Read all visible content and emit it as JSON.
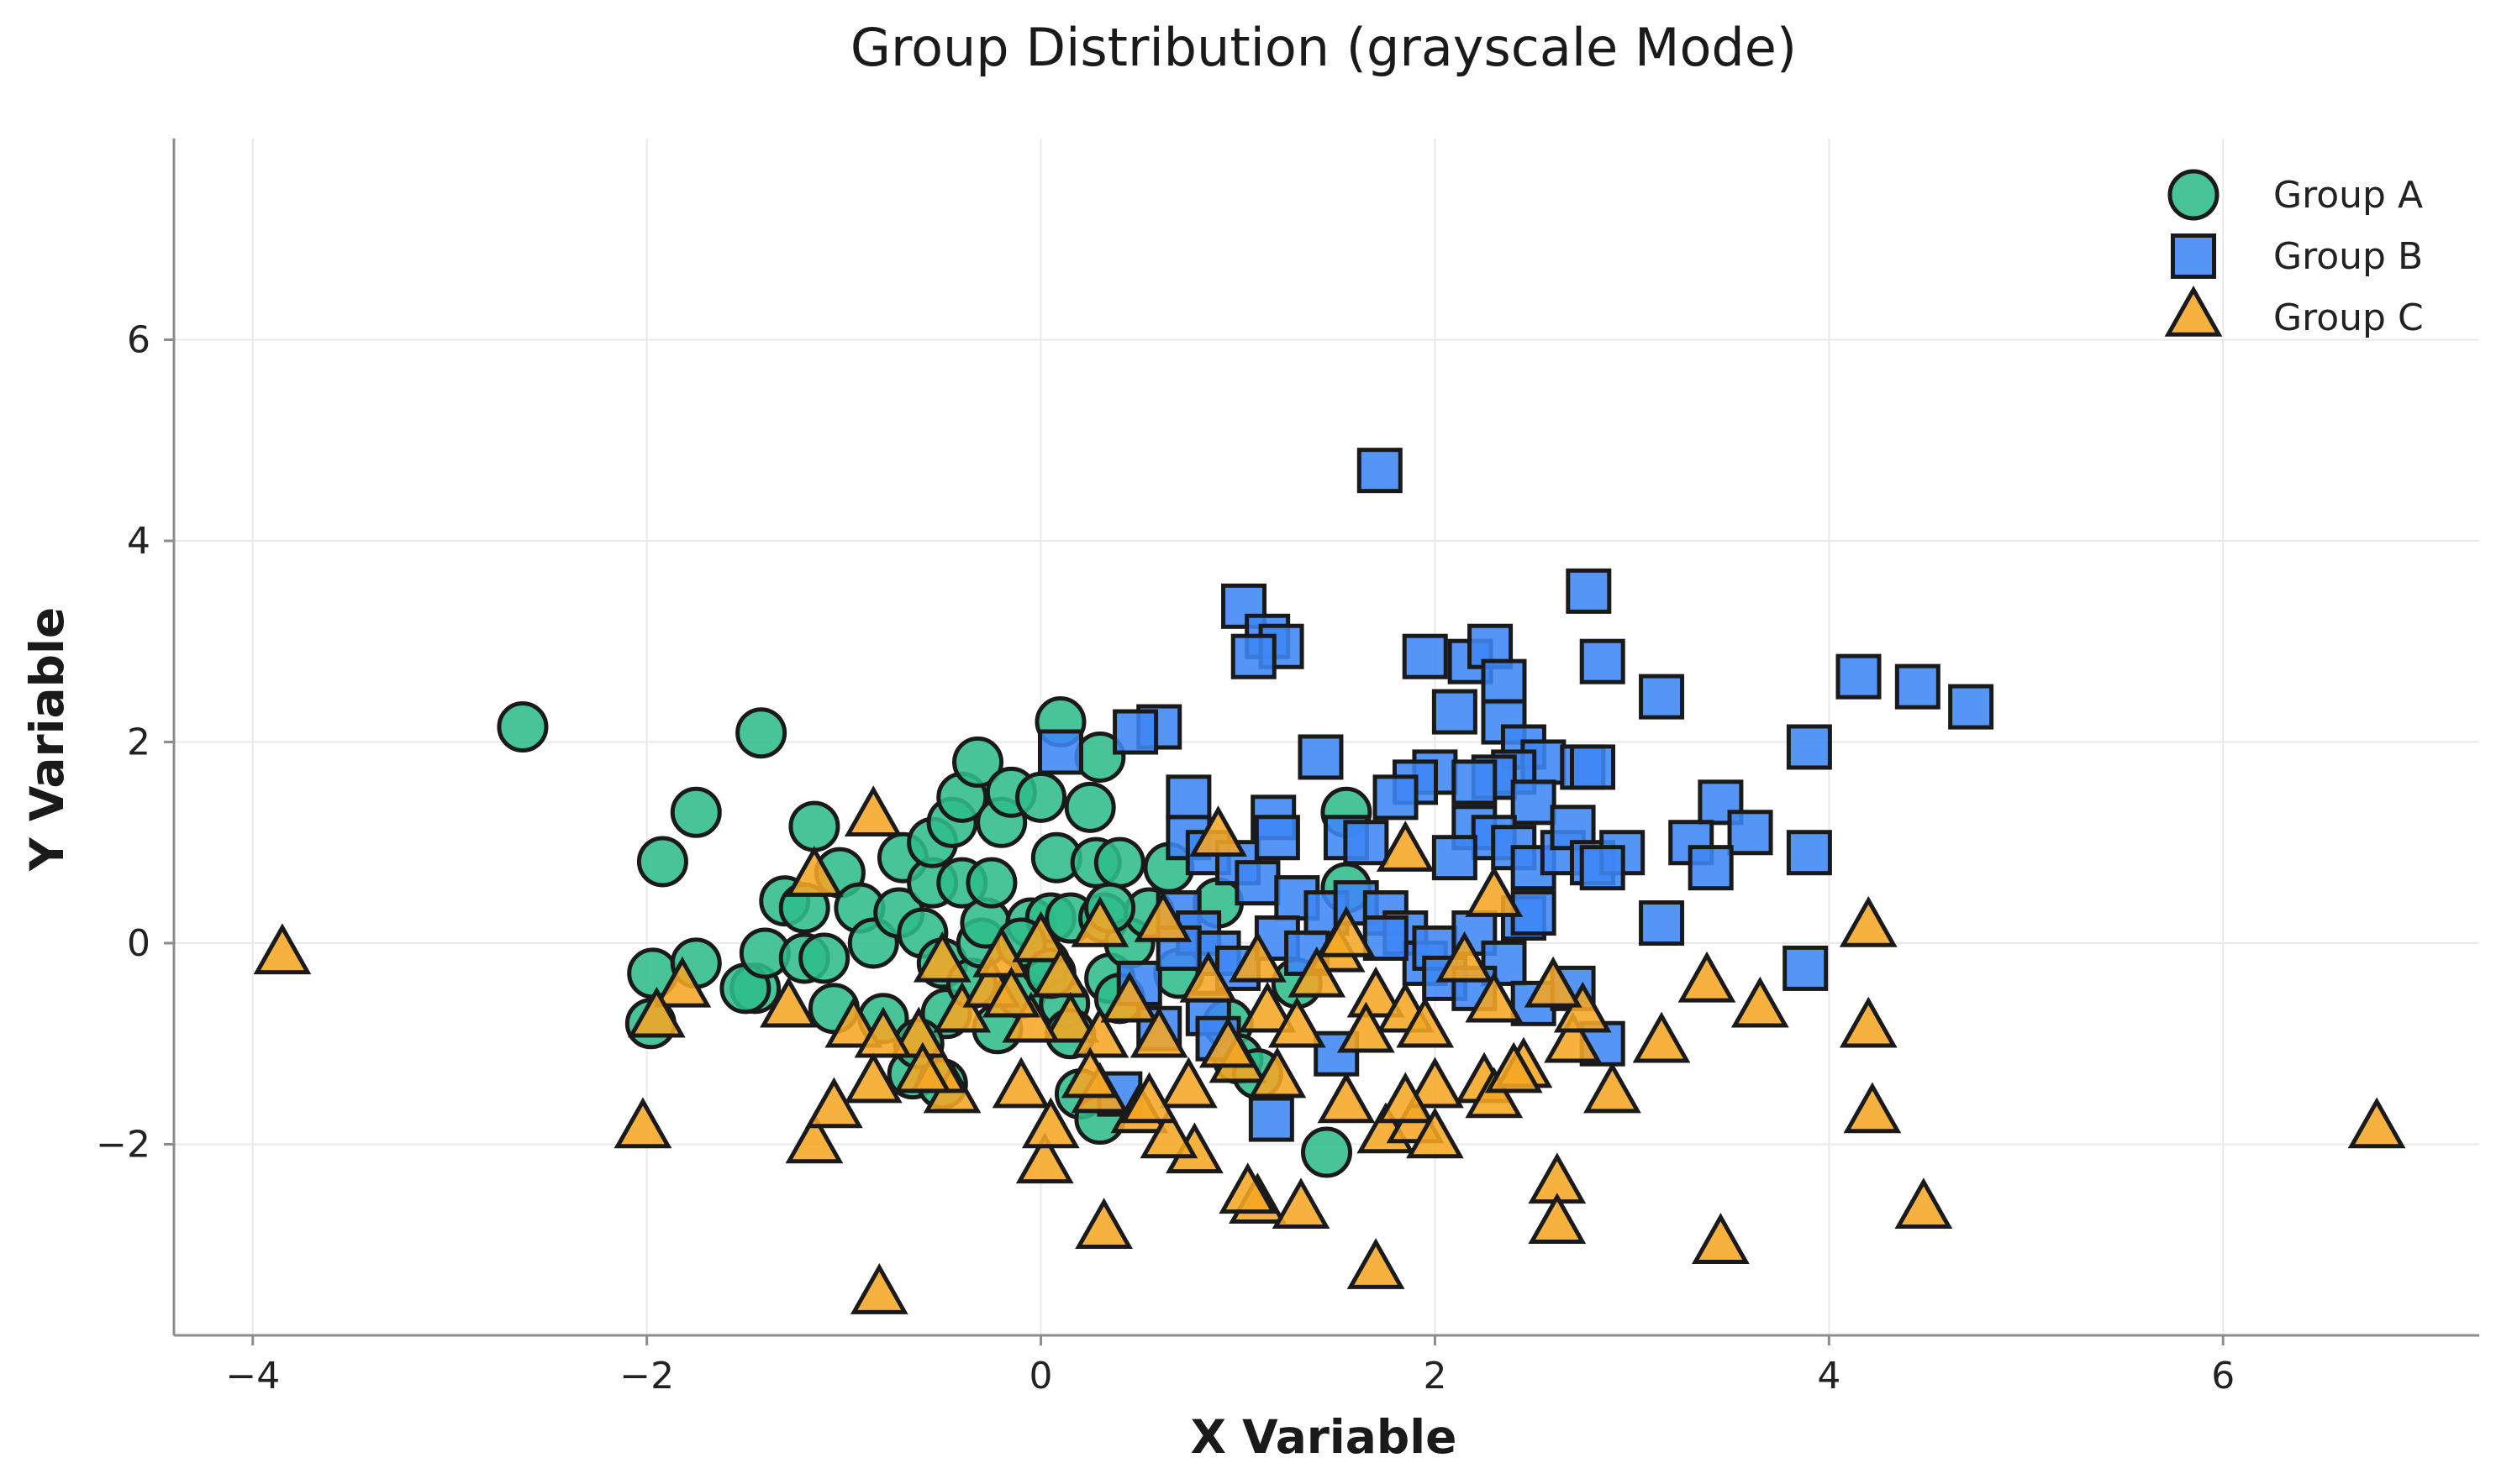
{
  "chart_data": {
    "type": "scatter",
    "title": "Group Distribution (grayscale Mode)",
    "xlabel": "X Variable",
    "ylabel": "Y Variable",
    "xlim": [
      -4.4,
      7.3
    ],
    "ylim": [
      -3.9,
      8.0
    ],
    "xticks": [
      -4,
      -2,
      0,
      2,
      4,
      6
    ],
    "yticks": [
      -2,
      0,
      2,
      4,
      6
    ],
    "xtick_labels": [
      "−4",
      "−2",
      "0",
      "2",
      "4",
      "6"
    ],
    "ytick_labels": [
      "−2",
      "0",
      "2",
      "4",
      "6"
    ],
    "grid": true,
    "legend_position": "top-right",
    "series": [
      {
        "name": "Group A",
        "marker": "circle",
        "color": "#2ebd8a",
        "points": [
          [
            -2.63,
            2.15
          ],
          [
            -1.42,
            2.09
          ],
          [
            -1.75,
            1.3
          ],
          [
            -1.92,
            0.81
          ],
          [
            -1.15,
            1.16
          ],
          [
            -1.97,
            -0.3
          ],
          [
            -1.75,
            -0.2
          ],
          [
            -1.98,
            -0.8
          ],
          [
            -1.45,
            -0.45
          ],
          [
            -1.5,
            -0.45
          ],
          [
            -1.4,
            -0.1
          ],
          [
            -1.3,
            0.42
          ],
          [
            -1.2,
            0.35
          ],
          [
            -1.2,
            -0.15
          ],
          [
            -1.1,
            -0.15
          ],
          [
            -1.05,
            -0.65
          ],
          [
            -1.02,
            0.7
          ],
          [
            -0.92,
            0.35
          ],
          [
            -0.85,
            0.0
          ],
          [
            -0.8,
            -0.75
          ],
          [
            -0.72,
            0.3
          ],
          [
            -0.7,
            0.85
          ],
          [
            -0.65,
            -1.3
          ],
          [
            -0.6,
            0.1
          ],
          [
            -0.55,
            0.6
          ],
          [
            -0.55,
            1.0
          ],
          [
            -0.5,
            -0.2
          ],
          [
            -0.48,
            -0.7
          ],
          [
            -0.45,
            1.2
          ],
          [
            -0.4,
            0.6
          ],
          [
            -0.4,
            1.45
          ],
          [
            -0.35,
            -0.4
          ],
          [
            -0.32,
            1.8
          ],
          [
            -0.3,
            0.0
          ],
          [
            -0.28,
            0.2
          ],
          [
            -0.25,
            0.6
          ],
          [
            -0.22,
            -0.85
          ],
          [
            -0.2,
            1.2
          ],
          [
            -0.15,
            1.5
          ],
          [
            -0.1,
            -0.5
          ],
          [
            -0.05,
            0.2
          ],
          [
            0.0,
            1.45
          ],
          [
            0.02,
            -0.2
          ],
          [
            0.05,
            0.25
          ],
          [
            0.08,
            0.85
          ],
          [
            0.1,
            2.2
          ],
          [
            0.12,
            -0.6
          ],
          [
            0.15,
            0.25
          ],
          [
            0.2,
            -1.5
          ],
          [
            0.25,
            1.35
          ],
          [
            0.28,
            0.8
          ],
          [
            0.3,
            1.85
          ],
          [
            0.32,
            0.25
          ],
          [
            0.35,
            -0.35
          ],
          [
            0.4,
            0.8
          ],
          [
            0.4,
            -0.55
          ],
          [
            0.45,
            0.0
          ],
          [
            -0.5,
            -1.4
          ],
          [
            0.3,
            -1.75
          ],
          [
            0.65,
            0.75
          ],
          [
            0.7,
            -0.3
          ],
          [
            0.9,
            0.4
          ],
          [
            0.95,
            -0.8
          ],
          [
            1.0,
            -1.15
          ],
          [
            1.1,
            -1.3
          ],
          [
            1.3,
            -0.4
          ],
          [
            1.55,
            1.3
          ],
          [
            1.55,
            0.55
          ],
          [
            1.45,
            -2.08
          ],
          [
            0.55,
            0.3
          ],
          [
            -0.1,
            0.0
          ],
          [
            0.15,
            -0.9
          ],
          [
            0.35,
            0.35
          ],
          [
            -0.62,
            -1.0
          ],
          [
            0.05,
            -0.3
          ]
        ]
      },
      {
        "name": "Group B",
        "marker": "square",
        "color": "#3d86f5",
        "points": [
          [
            1.72,
            4.7
          ],
          [
            2.78,
            3.5
          ],
          [
            1.03,
            3.35
          ],
          [
            1.15,
            3.05
          ],
          [
            1.22,
            2.95
          ],
          [
            1.08,
            2.85
          ],
          [
            1.95,
            2.85
          ],
          [
            2.18,
            2.8
          ],
          [
            2.28,
            2.95
          ],
          [
            2.35,
            2.6
          ],
          [
            2.85,
            2.8
          ],
          [
            3.15,
            2.45
          ],
          [
            4.15,
            2.65
          ],
          [
            4.45,
            2.55
          ],
          [
            4.72,
            2.35
          ],
          [
            0.6,
            2.15
          ],
          [
            0.48,
            2.1
          ],
          [
            0.1,
            1.9
          ],
          [
            2.1,
            2.3
          ],
          [
            2.35,
            2.2
          ],
          [
            1.42,
            1.85
          ],
          [
            2.45,
            1.95
          ],
          [
            2.55,
            1.8
          ],
          [
            2.75,
            1.75
          ],
          [
            2.8,
            1.75
          ],
          [
            2.0,
            1.7
          ],
          [
            2.4,
            1.7
          ],
          [
            2.3,
            1.65
          ],
          [
            2.2,
            1.6
          ],
          [
            1.9,
            1.6
          ],
          [
            1.8,
            1.45
          ],
          [
            2.5,
            1.4
          ],
          [
            3.9,
            1.95
          ],
          [
            3.45,
            1.4
          ],
          [
            3.6,
            1.1
          ],
          [
            3.3,
            1.0
          ],
          [
            3.4,
            0.75
          ],
          [
            3.9,
            0.9
          ],
          [
            3.15,
            0.2
          ],
          [
            3.88,
            -0.25
          ],
          [
            0.75,
            1.45
          ],
          [
            0.75,
            1.05
          ],
          [
            0.85,
            0.9
          ],
          [
            1.0,
            0.8
          ],
          [
            1.18,
            1.25
          ],
          [
            1.2,
            1.05
          ],
          [
            1.55,
            1.05
          ],
          [
            1.65,
            1.0
          ],
          [
            2.2,
            1.15
          ],
          [
            2.3,
            1.05
          ],
          [
            2.1,
            0.85
          ],
          [
            2.4,
            0.95
          ],
          [
            2.5,
            0.75
          ],
          [
            2.65,
            0.9
          ],
          [
            2.7,
            1.15
          ],
          [
            2.8,
            0.8
          ],
          [
            2.95,
            0.9
          ],
          [
            2.85,
            0.75
          ],
          [
            1.1,
            0.6
          ],
          [
            1.3,
            0.45
          ],
          [
            1.45,
            0.3
          ],
          [
            1.6,
            0.4
          ],
          [
            1.75,
            0.3
          ],
          [
            1.85,
            0.1
          ],
          [
            1.95,
            -0.2
          ],
          [
            2.0,
            -0.05
          ],
          [
            2.2,
            0.1
          ],
          [
            2.35,
            -0.2
          ],
          [
            2.45,
            0.25
          ],
          [
            2.5,
            0.3
          ],
          [
            0.7,
            0.3
          ],
          [
            0.8,
            0.1
          ],
          [
            0.9,
            -0.1
          ],
          [
            1.0,
            -0.25
          ],
          [
            1.2,
            0.05
          ],
          [
            1.35,
            -0.1
          ],
          [
            0.5,
            -0.4
          ],
          [
            0.6,
            -0.85
          ],
          [
            0.85,
            -0.7
          ],
          [
            0.9,
            -0.95
          ],
          [
            1.5,
            -1.1
          ],
          [
            2.05,
            -0.35
          ],
          [
            2.2,
            -0.45
          ],
          [
            2.5,
            -0.6
          ],
          [
            2.7,
            -0.45
          ],
          [
            2.85,
            -1.0
          ],
          [
            1.17,
            -1.75
          ],
          [
            0.4,
            -1.5
          ],
          [
            0.7,
            -0.05
          ],
          [
            1.75,
            0.05
          ]
        ]
      },
      {
        "name": "Group C",
        "marker": "triangle",
        "color": "#f5a623",
        "points": [
          [
            -3.85,
            -0.12
          ],
          [
            6.78,
            -1.85
          ],
          [
            -0.82,
            -3.5
          ],
          [
            4.2,
            0.15
          ],
          [
            4.2,
            -0.85
          ],
          [
            4.22,
            -1.7
          ],
          [
            4.48,
            -2.65
          ],
          [
            3.45,
            -3.0
          ],
          [
            3.38,
            -0.4
          ],
          [
            3.65,
            -0.65
          ],
          [
            3.15,
            -1.0
          ],
          [
            2.9,
            -1.5
          ],
          [
            2.62,
            -2.4
          ],
          [
            2.62,
            -2.8
          ],
          [
            1.7,
            -3.25
          ],
          [
            0.32,
            -2.85
          ],
          [
            1.1,
            -2.6
          ],
          [
            1.32,
            -2.65
          ],
          [
            0.02,
            -2.2
          ],
          [
            0.78,
            -2.1
          ],
          [
            -2.02,
            -1.85
          ],
          [
            -1.15,
            -2.0
          ],
          [
            -1.05,
            -1.65
          ],
          [
            -0.85,
            -1.4
          ],
          [
            -0.45,
            -1.5
          ],
          [
            -0.52,
            -1.3
          ],
          [
            -0.1,
            -1.45
          ],
          [
            0.05,
            -1.85
          ],
          [
            0.3,
            -1.5
          ],
          [
            0.5,
            -1.7
          ],
          [
            0.65,
            -1.95
          ],
          [
            0.75,
            -1.45
          ],
          [
            1.0,
            -1.2
          ],
          [
            1.2,
            -1.35
          ],
          [
            1.55,
            -1.6
          ],
          [
            1.75,
            -1.9
          ],
          [
            1.9,
            -1.8
          ],
          [
            2.0,
            -1.45
          ],
          [
            2.25,
            -1.4
          ],
          [
            2.3,
            -1.55
          ],
          [
            2.45,
            -1.25
          ],
          [
            2.7,
            -1.0
          ],
          [
            2.75,
            -0.7
          ],
          [
            2.6,
            -0.45
          ],
          [
            -1.82,
            -0.45
          ],
          [
            -1.95,
            -0.75
          ],
          [
            -1.28,
            -0.65
          ],
          [
            -0.95,
            -0.85
          ],
          [
            -0.62,
            -0.95
          ],
          [
            -0.4,
            -0.7
          ],
          [
            -0.25,
            -0.45
          ],
          [
            -0.2,
            -0.15
          ],
          [
            0.0,
            0.0
          ],
          [
            0.1,
            -0.35
          ],
          [
            0.15,
            -0.8
          ],
          [
            0.3,
            -0.95
          ],
          [
            0.45,
            -0.6
          ],
          [
            0.6,
            -0.95
          ],
          [
            0.85,
            -0.4
          ],
          [
            1.1,
            -0.2
          ],
          [
            1.15,
            -0.7
          ],
          [
            1.3,
            -0.85
          ],
          [
            1.5,
            -0.1
          ],
          [
            1.55,
            0.05
          ],
          [
            1.7,
            -0.55
          ],
          [
            1.85,
            -0.7
          ],
          [
            1.95,
            -0.85
          ],
          [
            2.15,
            -0.2
          ],
          [
            2.3,
            -0.6
          ],
          [
            -1.15,
            0.65
          ],
          [
            -0.85,
            1.25
          ],
          [
            0.3,
            0.15
          ],
          [
            0.62,
            0.2
          ],
          [
            0.9,
            1.05
          ],
          [
            1.85,
            0.9
          ],
          [
            2.3,
            0.45
          ],
          [
            -0.5,
            -0.2
          ],
          [
            -0.8,
            -0.95
          ],
          [
            -0.05,
            -0.8
          ],
          [
            0.25,
            -1.35
          ],
          [
            1.05,
            -2.5
          ],
          [
            1.85,
            -1.6
          ],
          [
            2.0,
            -1.95
          ],
          [
            2.4,
            -1.3
          ],
          [
            0.95,
            -1.05
          ],
          [
            1.4,
            -0.35
          ],
          [
            1.65,
            -0.9
          ],
          [
            0.55,
            -1.6
          ],
          [
            -0.15,
            -0.55
          ],
          [
            -0.6,
            -1.3
          ]
        ]
      }
    ]
  }
}
